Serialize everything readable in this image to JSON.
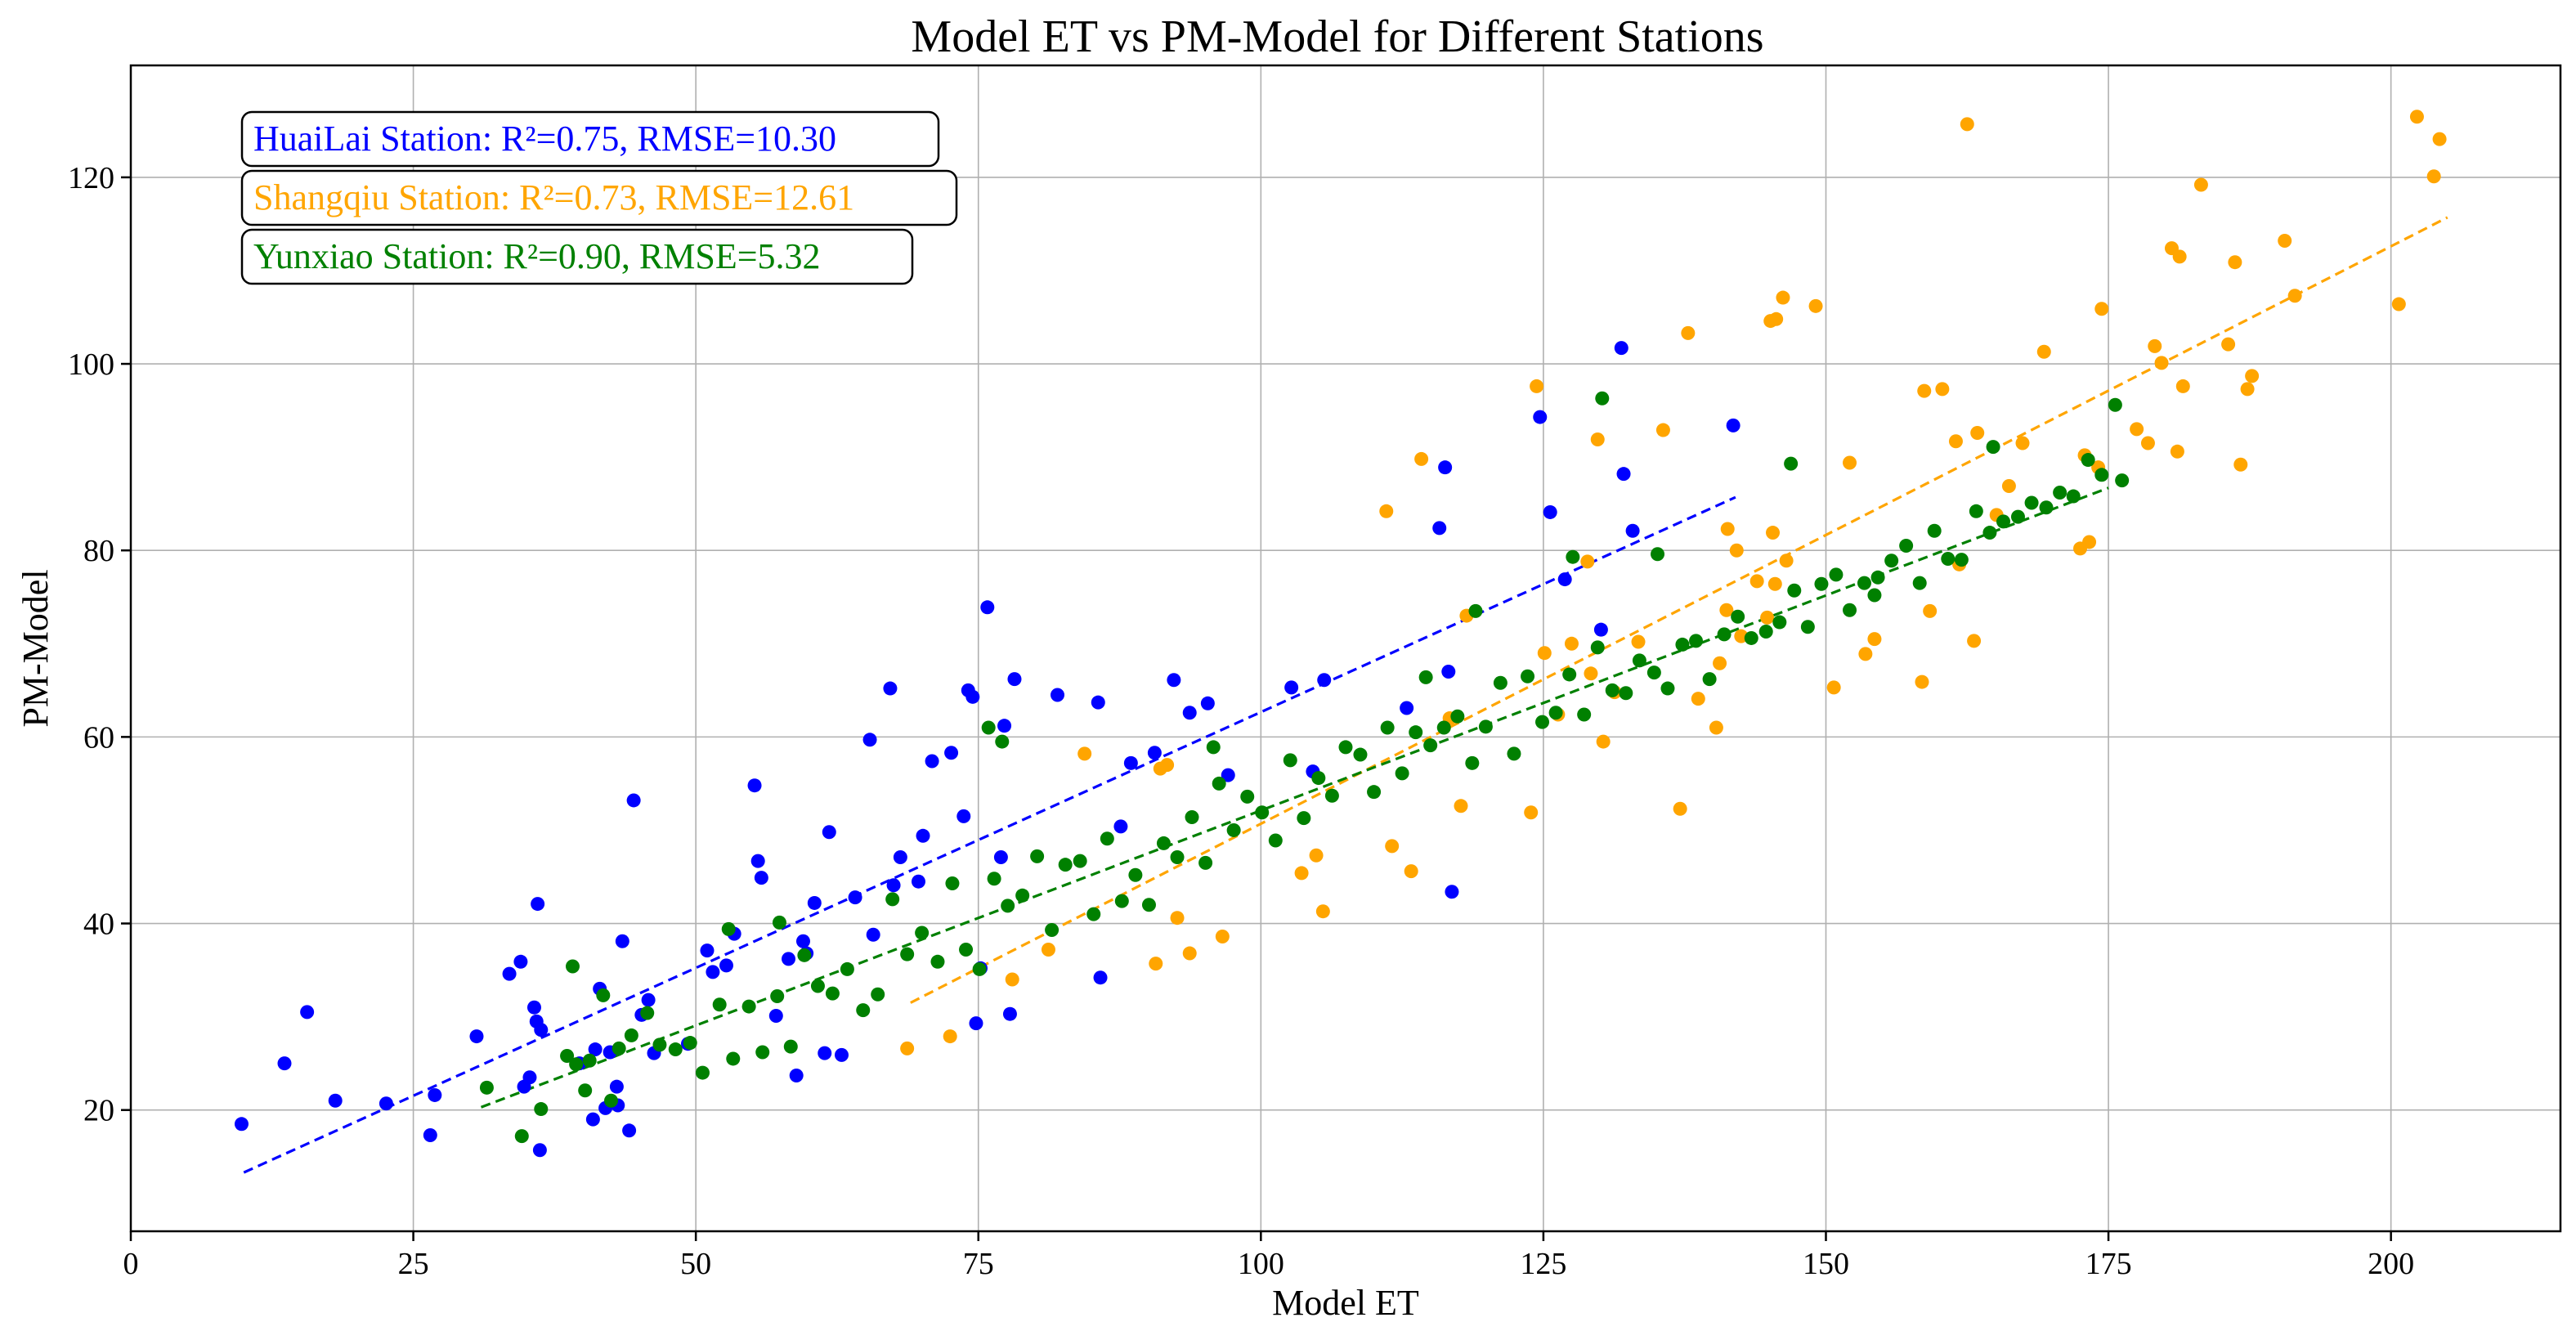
{
  "chart_data": {
    "type": "scatter",
    "title": "Model ET vs PM-Model for Different Stations",
    "xlabel": "Model ET",
    "ylabel": "PM-Model",
    "xlim": [
      0,
      215
    ],
    "ylim": [
      7,
      132
    ],
    "xticks": [
      0,
      25,
      50,
      75,
      100,
      125,
      150,
      175,
      200
    ],
    "yticks": [
      20,
      40,
      60,
      80,
      100,
      120
    ],
    "grid": true,
    "legend_position": "top-left",
    "series": [
      {
        "name": "HuaiLai Station",
        "color": "#0000ff",
        "stats_label": "HuaiLai Station: R²=0.75, RMSE=10.30",
        "trend": {
          "x": [
            10,
            142
          ],
          "y": [
            13.3,
            85.7
          ]
        },
        "x": [
          9.8,
          13.6,
          15.6,
          18.1,
          22.6,
          26.5,
          26.9,
          30.6,
          33.5,
          34.5,
          34.8,
          35.3,
          35.7,
          35.9,
          36.0,
          36.2,
          36.3,
          39.7,
          40.9,
          41.1,
          41.5,
          42.0,
          42.4,
          43.0,
          43.1,
          43.5,
          44.1,
          44.5,
          45.2,
          45.8,
          46.3,
          49.3,
          51.0,
          51.5,
          52.7,
          53.4,
          55.2,
          55.5,
          55.8,
          57.1,
          58.2,
          58.9,
          59.5,
          59.8,
          60.5,
          61.4,
          61.8,
          62.9,
          64.1,
          65.4,
          65.7,
          67.2,
          67.5,
          68.1,
          69.7,
          70.1,
          70.9,
          72.6,
          73.7,
          74.1,
          74.5,
          74.8,
          75.2,
          75.8,
          77.0,
          77.3,
          77.8,
          78.2,
          82.0,
          85.6,
          85.8,
          87.6,
          88.5,
          90.6,
          92.3,
          93.7,
          95.3,
          97.1,
          102.7,
          104.6,
          105.6,
          112.9,
          115.8,
          116.3,
          116.6,
          116.9,
          124.7,
          125.6,
          126.9,
          130.1,
          131.9,
          132.1,
          132.9,
          141.8
        ],
        "y": [
          18.5,
          25.0,
          30.5,
          21.0,
          20.7,
          17.3,
          21.6,
          27.9,
          34.6,
          35.9,
          22.5,
          23.5,
          31.0,
          29.5,
          42.1,
          15.7,
          28.6,
          25.0,
          19.0,
          26.5,
          33.0,
          20.2,
          26.2,
          22.5,
          20.5,
          38.1,
          17.8,
          53.2,
          30.2,
          31.8,
          26.1,
          27.1,
          37.1,
          34.8,
          35.5,
          38.9,
          54.8,
          46.7,
          44.9,
          30.1,
          36.2,
          23.7,
          38.1,
          36.8,
          42.2,
          26.1,
          49.8,
          25.9,
          42.8,
          59.7,
          38.8,
          65.2,
          44.1,
          47.1,
          44.5,
          49.4,
          57.4,
          58.3,
          51.5,
          65.0,
          64.3,
          29.3,
          35.2,
          73.9,
          47.1,
          61.2,
          30.3,
          66.2,
          64.5,
          63.7,
          34.2,
          50.4,
          57.2,
          58.3,
          66.1,
          62.6,
          63.6,
          55.9,
          65.3,
          56.3,
          66.1,
          63.1,
          82.4,
          88.9,
          67.0,
          43.4,
          94.3,
          84.1,
          76.9,
          71.5,
          101.7,
          88.2,
          82.1,
          93.4
        ]
      },
      {
        "name": "Shangqiu Station",
        "color": "#ffa500",
        "stats_label": "Shangqiu Station: R²=0.73, RMSE=12.61",
        "trend": {
          "x": [
            69,
            205
          ],
          "y": [
            31.5,
            115.7
          ]
        },
        "x": [
          68.7,
          72.5,
          78.0,
          81.2,
          84.4,
          90.7,
          91.1,
          91.7,
          92.6,
          93.7,
          96.6,
          103.6,
          104.9,
          105.5,
          111.1,
          111.6,
          113.3,
          114.2,
          116.7,
          117.7,
          118.2,
          123.9,
          124.4,
          125.1,
          126.3,
          127.5,
          128.9,
          129.2,
          129.8,
          130.3,
          131.3,
          133.4,
          135.6,
          137.1,
          137.8,
          138.7,
          140.3,
          140.6,
          141.2,
          141.3,
          142.1,
          142.5,
          143.9,
          144.8,
          145.1,
          145.3,
          145.5,
          145.6,
          146.2,
          146.5,
          149.1,
          150.7,
          152.1,
          153.5,
          154.3,
          158.5,
          158.7,
          159.2,
          160.3,
          161.5,
          161.8,
          162.5,
          163.1,
          163.4,
          165.1,
          166.2,
          167.4,
          169.3,
          172.5,
          172.9,
          173.3,
          174.1,
          174.4,
          177.5,
          178.5,
          179.1,
          179.7,
          180.6,
          181.1,
          181.3,
          181.6,
          183.2,
          185.6,
          186.2,
          186.7,
          187.3,
          187.7,
          190.6,
          191.5,
          200.7,
          202.3,
          203.8,
          204.3
        ],
        "y": [
          26.6,
          27.9,
          34.0,
          37.2,
          58.2,
          35.7,
          56.6,
          57.0,
          40.6,
          36.8,
          38.6,
          45.4,
          47.3,
          41.3,
          84.2,
          48.3,
          45.6,
          89.8,
          62.0,
          52.6,
          73.0,
          51.9,
          97.6,
          69.0,
          62.4,
          70.0,
          78.8,
          66.8,
          91.9,
          59.5,
          64.8,
          70.2,
          92.9,
          52.3,
          103.3,
          64.1,
          61.0,
          67.9,
          73.6,
          82.3,
          80.0,
          70.8,
          76.7,
          72.8,
          104.6,
          81.9,
          76.4,
          104.8,
          107.1,
          78.9,
          106.2,
          65.3,
          89.4,
          68.9,
          70.5,
          65.9,
          97.1,
          73.5,
          97.3,
          91.7,
          78.5,
          125.7,
          70.3,
          92.6,
          83.8,
          86.9,
          91.5,
          101.3,
          80.2,
          90.2,
          80.9,
          88.9,
          105.9,
          93.0,
          91.5,
          101.9,
          100.1,
          112.4,
          90.6,
          111.5,
          97.6,
          119.2,
          102.1,
          110.9,
          89.2,
          97.3,
          98.7,
          113.2,
          107.3,
          106.4,
          126.5,
          120.1,
          124.1
        ]
      },
      {
        "name": "Yunxiao Station",
        "color": "#008000",
        "stats_label": "Yunxiao Station: R²=0.90, RMSE=5.32",
        "trend": {
          "x": [
            31,
            175
          ],
          "y": [
            20.3,
            86.7
          ]
        },
        "x": [
          31.5,
          34.6,
          36.3,
          38.6,
          39.4,
          40.2,
          40.6,
          41.8,
          42.5,
          43.2,
          44.3,
          45.7,
          46.8,
          48.2,
          49.5,
          50.6,
          52.1,
          53.3,
          54.7,
          55.9,
          57.2,
          58.4,
          59.6,
          60.8,
          62.1,
          63.4,
          64.8,
          66.1,
          67.4,
          68.7,
          70.0,
          71.4,
          72.7,
          73.9,
          75.1,
          76.4,
          77.6,
          78.9,
          80.2,
          81.5,
          82.7,
          84.0,
          85.2,
          86.4,
          87.7,
          88.9,
          90.1,
          91.4,
          92.6,
          93.9,
          95.1,
          96.3,
          97.6,
          98.8,
          100.1,
          101.3,
          102.6,
          103.8,
          105.1,
          106.3,
          107.5,
          108.8,
          110.0,
          111.2,
          112.5,
          113.7,
          115.0,
          116.2,
          117.4,
          118.7,
          119.9,
          121.2,
          122.4,
          123.6,
          124.9,
          126.1,
          127.3,
          128.6,
          129.8,
          131.1,
          132.3,
          133.5,
          134.8,
          136.0,
          137.3,
          138.5,
          139.7,
          141.0,
          142.2,
          143.4,
          144.7,
          145.9,
          147.2,
          148.4,
          149.6,
          150.9,
          152.1,
          153.4,
          154.6,
          155.8,
          157.1,
          158.3,
          159.6,
          160.8,
          162.0,
          163.3,
          164.5,
          165.7,
          167.0,
          168.2,
          169.5,
          170.7,
          171.9,
          173.2,
          174.4,
          175.6,
          39.1,
          52.9,
          57.4,
          75.9,
          77.1,
          95.8,
          114.6,
          119.0,
          127.6,
          130.2,
          135.1,
          146.9,
          154.3,
          164.8,
          176.2
        ],
        "y": [
          22.4,
          17.2,
          20.1,
          25.8,
          24.9,
          22.1,
          25.3,
          32.3,
          21.0,
          26.6,
          28.0,
          30.4,
          27.0,
          26.5,
          27.2,
          24.0,
          31.3,
          25.5,
          31.1,
          26.2,
          32.2,
          26.8,
          36.6,
          33.3,
          32.5,
          35.1,
          30.7,
          32.4,
          42.6,
          36.7,
          39.0,
          35.9,
          44.3,
          37.2,
          35.1,
          44.8,
          41.9,
          43.0,
          47.2,
          39.3,
          46.3,
          46.7,
          41.0,
          49.1,
          42.4,
          45.2,
          42.0,
          48.6,
          47.1,
          51.4,
          46.5,
          55.0,
          50.0,
          53.6,
          51.9,
          48.9,
          57.5,
          51.3,
          55.6,
          53.7,
          58.9,
          58.1,
          54.1,
          61.0,
          56.1,
          60.5,
          59.1,
          61.0,
          62.2,
          57.2,
          61.1,
          65.8,
          58.2,
          66.5,
          61.6,
          62.6,
          66.7,
          62.4,
          69.6,
          65.0,
          64.7,
          68.2,
          66.9,
          65.2,
          69.9,
          70.3,
          66.2,
          71.0,
          72.9,
          70.6,
          71.3,
          72.3,
          75.7,
          71.8,
          76.4,
          77.4,
          73.6,
          76.5,
          77.1,
          78.9,
          80.5,
          76.5,
          82.1,
          79.1,
          79.0,
          84.2,
          81.9,
          83.1,
          83.6,
          85.1,
          84.6,
          86.2,
          85.8,
          89.7,
          88.1,
          95.6,
          35.4,
          39.4,
          40.1,
          61.0,
          59.5,
          58.9,
          66.4,
          73.5,
          79.3,
          96.3,
          79.6,
          89.3,
          75.2,
          91.1,
          87.5
        ]
      }
    ]
  }
}
